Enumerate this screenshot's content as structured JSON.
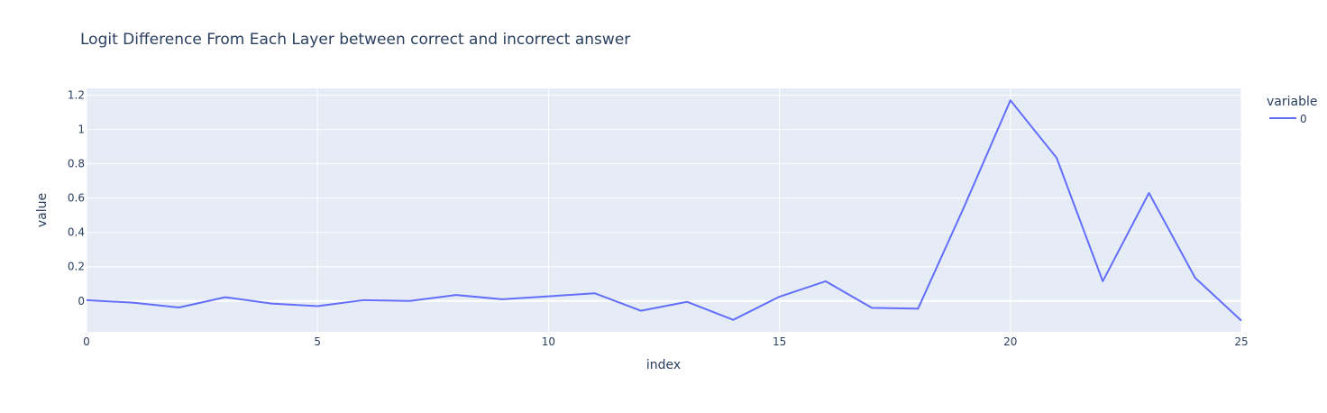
{
  "chart_data": {
    "type": "line",
    "title": "Logit Difference From Each Layer between correct and incorrect answer",
    "xlabel": "index",
    "ylabel": "value",
    "xlim": [
      0,
      25
    ],
    "ylim": [
      -0.18,
      1.24
    ],
    "x_ticks": [
      0,
      5,
      10,
      15,
      20,
      25
    ],
    "x_tick_labels": [
      "0",
      "5",
      "10",
      "15",
      "20",
      "25"
    ],
    "y_ticks": [
      0,
      0.2,
      0.4,
      0.6,
      0.8,
      1,
      1.2
    ],
    "y_tick_labels": [
      "0",
      "0.2",
      "0.4",
      "0.6",
      "0.8",
      "1",
      "1.2"
    ],
    "grid": true,
    "legend": {
      "title": "variable",
      "placement": "top-right"
    },
    "colors": {
      "plot_background": "#e5ecf6",
      "grid": "#ffffff",
      "text": "#2a3f5f"
    },
    "x": [
      0,
      1,
      2,
      3,
      4,
      5,
      6,
      7,
      8,
      9,
      10,
      11,
      12,
      13,
      14,
      15,
      16,
      17,
      18,
      19,
      20,
      21,
      22,
      23,
      24,
      25
    ],
    "series": [
      {
        "name": "0",
        "color": "#636efa",
        "values": [
          0.005,
          -0.01,
          -0.038,
          0.022,
          -0.015,
          -0.03,
          0.005,
          0.0,
          0.035,
          0.01,
          0.027,
          0.045,
          -0.057,
          -0.005,
          -0.11,
          0.025,
          0.115,
          -0.04,
          -0.045,
          0.55,
          1.17,
          0.835,
          0.115,
          0.63,
          0.135,
          -0.115
        ]
      }
    ]
  }
}
